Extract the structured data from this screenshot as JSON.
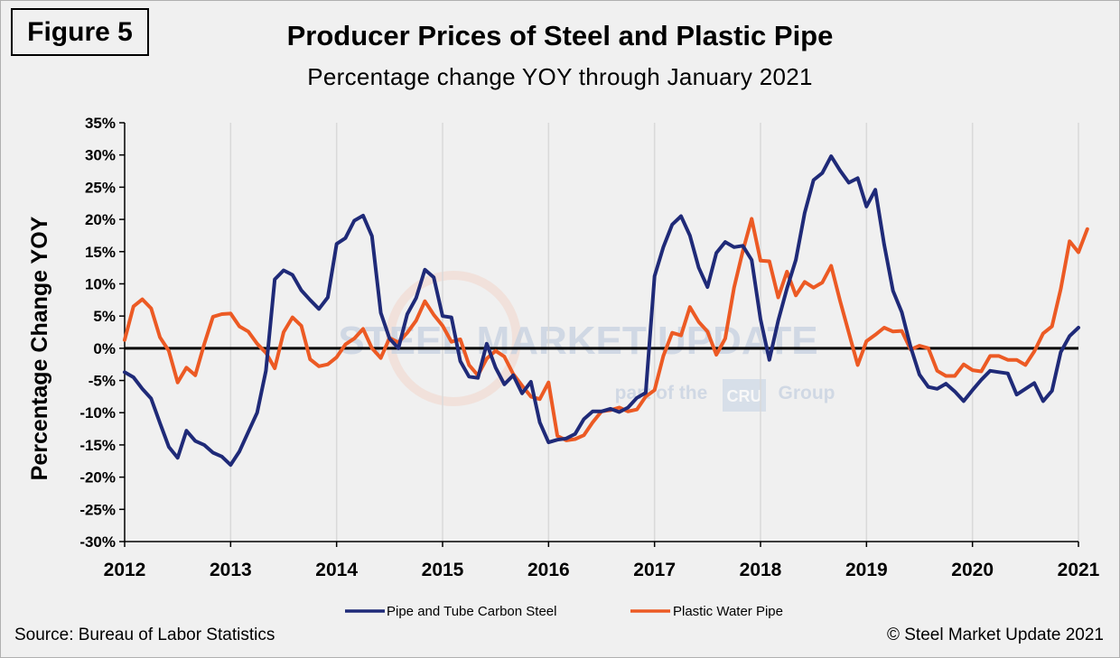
{
  "figure_label": "Figure 5",
  "source": "Source: Bureau of Labor Statistics",
  "copyright": "© Steel Market Update 2021",
  "watermark": {
    "brand": "STEEL MARKET UPDATE",
    "tagline_prefix": "part of the",
    "tagline_logo": "CRU",
    "tagline_suffix": "Group",
    "color": "#8fa6c8"
  },
  "colors": {
    "series_steel": "#1f2a78",
    "series_plastic": "#ec5a24",
    "zero_line": "#000000",
    "grid": "#d9d9d9",
    "background": "#f0f0f0"
  },
  "chart_data": {
    "type": "line",
    "title": "Producer Prices of Steel and Plastic Pipe",
    "subtitle": "Percentage change YOY through January 2021",
    "xlabel": "",
    "ylabel": "Percentage Change YOY",
    "ylim": [
      -30,
      35
    ],
    "yticks": [
      -30,
      -25,
      -20,
      -15,
      -10,
      -5,
      0,
      5,
      10,
      15,
      20,
      25,
      30,
      35
    ],
    "ytick_labels": [
      "-30%",
      "-25%",
      "-20%",
      "-15%",
      "-10%",
      "-5%",
      "0%",
      "5%",
      "10%",
      "15%",
      "20%",
      "25%",
      "30%",
      "35%"
    ],
    "xlim": [
      2012,
      2021
    ],
    "xticks": [
      2012,
      2013,
      2014,
      2015,
      2016,
      2017,
      2018,
      2019,
      2020,
      2021
    ],
    "xtick_labels": [
      "2012",
      "2013",
      "2014",
      "2015",
      "2016",
      "2017",
      "2018",
      "2019",
      "2020",
      "2021"
    ],
    "grid": "vertical",
    "legend_position": "bottom",
    "series": [
      {
        "name": "Pipe and Tube Carbon Steel",
        "start": "2012-01",
        "values": [
          -3.7,
          -4.5,
          -6.3,
          -7.8,
          -11.6,
          -15.3,
          -17.0,
          -12.8,
          -14.4,
          -15.0,
          -16.2,
          -16.8,
          -18.1,
          -16.0,
          -13.0,
          -10.0,
          -3.5,
          10.7,
          12.1,
          11.4,
          9.0,
          7.5,
          6.1,
          7.9,
          16.2,
          17.1,
          19.8,
          20.6,
          17.4,
          5.5,
          1.5,
          0.0,
          5.3,
          7.8,
          12.2,
          11.0,
          5.0,
          4.8,
          -2.0,
          -4.4,
          -4.6,
          0.7,
          -3.0,
          -5.6,
          -4.2,
          -7.0,
          -5.2,
          -11.5,
          -14.6,
          -14.2,
          -14.0,
          -13.3,
          -11.0,
          -9.8,
          -9.8,
          -9.4,
          -9.9,
          -9.2,
          -7.7,
          -6.9,
          11.2,
          15.7,
          19.2,
          20.5,
          17.5,
          12.5,
          9.5,
          14.8,
          16.5,
          15.7,
          15.9,
          13.7,
          4.5,
          -1.8,
          4.3,
          9.3,
          13.7,
          21.0,
          26.1,
          27.2,
          29.8,
          27.6,
          25.7,
          26.4,
          22.0,
          24.6,
          16.1,
          8.9,
          5.6,
          0.2,
          -4.1,
          -6.0,
          -6.3,
          -5.5,
          -6.7,
          -8.2,
          -6.5,
          -4.9,
          -3.5,
          -3.7,
          -3.9,
          -7.2,
          -6.3,
          -5.4,
          -8.2,
          -6.6,
          -0.6,
          1.9,
          3.2
        ]
      },
      {
        "name": "Plastic Water Pipe",
        "start": "2012-01",
        "values": [
          1.3,
          6.5,
          7.6,
          6.2,
          1.7,
          -0.4,
          -5.3,
          -3.0,
          -4.2,
          0.6,
          4.9,
          5.3,
          5.4,
          3.4,
          2.6,
          0.7,
          -0.7,
          -3.1,
          2.5,
          4.8,
          3.5,
          -1.7,
          -2.8,
          -2.5,
          -1.4,
          0.6,
          1.5,
          3.0,
          0.0,
          -1.5,
          1.6,
          0.9,
          2.4,
          4.3,
          7.3,
          5.2,
          3.5,
          1.0,
          1.4,
          -2.6,
          -4.2,
          -1.6,
          -0.4,
          -1.3,
          -4.0,
          -5.8,
          -7.5,
          -7.9,
          -5.3,
          -13.6,
          -14.3,
          -14.1,
          -13.5,
          -11.5,
          -9.8,
          -9.6,
          -9.2,
          -9.8,
          -9.5,
          -7.5,
          -6.5,
          -1.2,
          2.4,
          2.0,
          6.4,
          4.1,
          2.6,
          -1.0,
          1.5,
          9.4,
          15.1,
          20.1,
          13.6,
          13.5,
          7.9,
          11.9,
          8.2,
          10.3,
          9.4,
          10.2,
          12.8,
          7.4,
          2.4,
          -2.6,
          1.1,
          2.1,
          3.2,
          2.6,
          2.7,
          -0.2,
          0.4,
          0.0,
          -3.5,
          -4.3,
          -4.3,
          -2.5,
          -3.4,
          -3.6,
          -1.2,
          -1.2,
          -1.8,
          -1.8,
          -2.6,
          -0.5,
          2.3,
          3.4,
          9.2,
          16.6,
          14.9,
          18.5
        ]
      }
    ]
  }
}
